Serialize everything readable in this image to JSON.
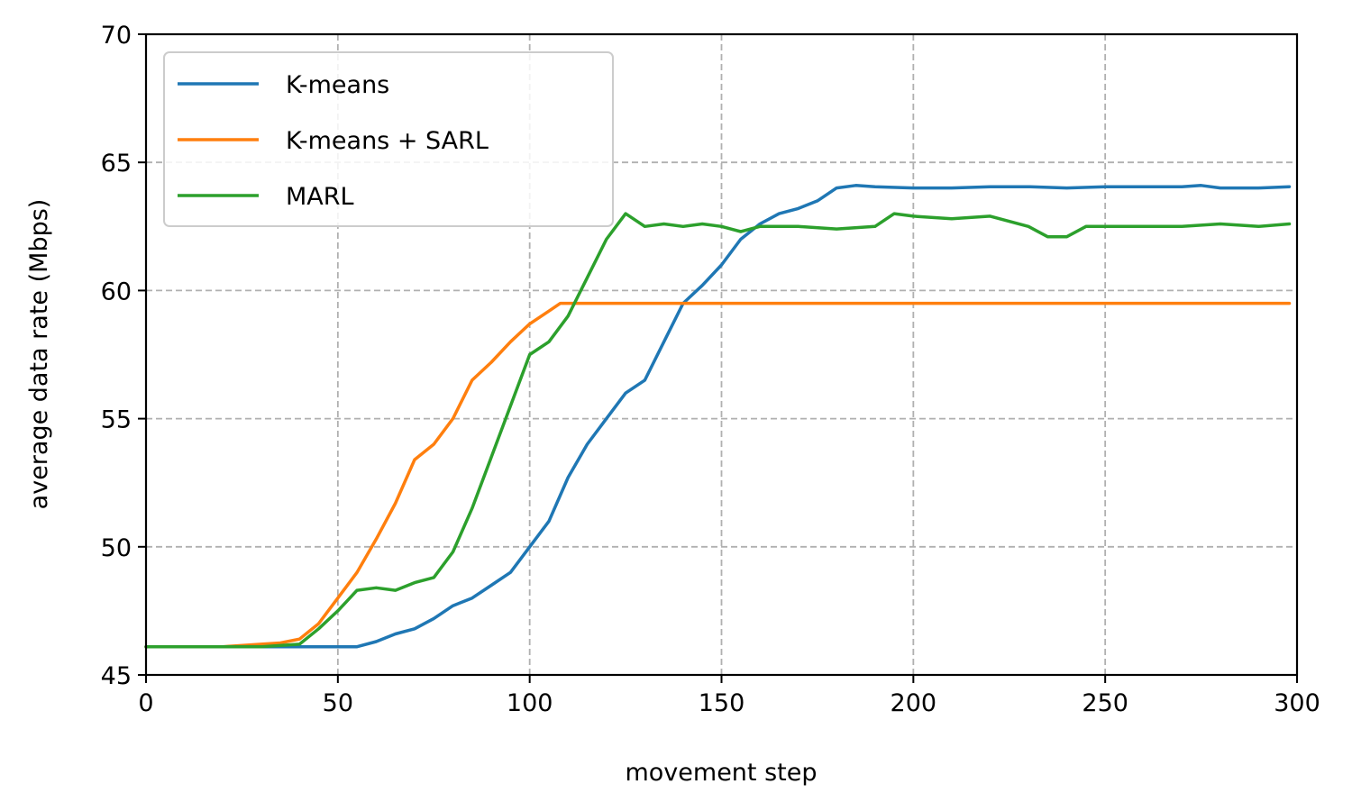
{
  "chart_data": {
    "type": "line",
    "title": "",
    "xlabel": "movement step",
    "ylabel": "average data rate (Mbps)",
    "xlim": [
      0,
      300
    ],
    "ylim": [
      45,
      70
    ],
    "xticks": [
      "0",
      "50",
      "100",
      "150",
      "200",
      "250",
      "300"
    ],
    "yticks": [
      "45",
      "50",
      "55",
      "60",
      "65",
      "70"
    ],
    "grid": true,
    "legend_position": "upper-left",
    "series": [
      {
        "name": "K-means",
        "color": "#1f77b4",
        "x": [
          0,
          10,
          20,
          30,
          40,
          50,
          55,
          60,
          65,
          70,
          75,
          80,
          85,
          90,
          95,
          100,
          105,
          110,
          115,
          120,
          125,
          130,
          135,
          140,
          145,
          150,
          155,
          160,
          165,
          170,
          175,
          180,
          185,
          190,
          200,
          210,
          220,
          230,
          240,
          250,
          260,
          270,
          275,
          280,
          290,
          298
        ],
        "y": [
          46.1,
          46.1,
          46.1,
          46.1,
          46.1,
          46.1,
          46.1,
          46.3,
          46.6,
          46.8,
          47.2,
          47.7,
          48.0,
          48.5,
          49.0,
          50.0,
          51.0,
          52.7,
          54.0,
          55.0,
          56.0,
          56.5,
          58.0,
          59.5,
          60.2,
          61.0,
          62.0,
          62.6,
          63.0,
          63.2,
          63.5,
          64.0,
          64.1,
          64.05,
          64.0,
          64.0,
          64.05,
          64.05,
          64.0,
          64.05,
          64.05,
          64.05,
          64.1,
          64.0,
          64.0,
          64.05
        ]
      },
      {
        "name": "K-means + SARL",
        "color": "#ff7f0e",
        "x": [
          0,
          10,
          20,
          30,
          35,
          40,
          45,
          50,
          55,
          60,
          65,
          70,
          75,
          80,
          85,
          90,
          95,
          100,
          105,
          108,
          110,
          120,
          130,
          140,
          150,
          160,
          170,
          180,
          190,
          200,
          210,
          220,
          230,
          240,
          250,
          260,
          270,
          280,
          290,
          298
        ],
        "y": [
          46.1,
          46.1,
          46.1,
          46.2,
          46.25,
          46.4,
          47.0,
          48.0,
          49.0,
          50.3,
          51.7,
          53.4,
          54.0,
          55.0,
          56.5,
          57.2,
          58.0,
          58.7,
          59.2,
          59.5,
          59.5,
          59.5,
          59.5,
          59.5,
          59.5,
          59.5,
          59.5,
          59.5,
          59.5,
          59.5,
          59.5,
          59.5,
          59.5,
          59.5,
          59.5,
          59.5,
          59.5,
          59.5,
          59.5,
          59.5
        ]
      },
      {
        "name": "MARL",
        "color": "#2ca02c",
        "x": [
          0,
          10,
          20,
          30,
          40,
          45,
          50,
          55,
          60,
          65,
          70,
          75,
          80,
          85,
          90,
          95,
          100,
          105,
          110,
          115,
          120,
          125,
          130,
          135,
          140,
          145,
          150,
          155,
          160,
          170,
          180,
          190,
          195,
          200,
          210,
          220,
          230,
          235,
          240,
          245,
          250,
          260,
          270,
          280,
          290,
          298
        ],
        "y": [
          46.1,
          46.1,
          46.1,
          46.1,
          46.2,
          46.8,
          47.5,
          48.3,
          48.4,
          48.3,
          48.6,
          48.8,
          49.8,
          51.5,
          53.5,
          55.5,
          57.5,
          58.0,
          59.0,
          60.5,
          62.0,
          63.0,
          62.5,
          62.6,
          62.5,
          62.6,
          62.5,
          62.3,
          62.5,
          62.5,
          62.4,
          62.5,
          63.0,
          62.9,
          62.8,
          62.9,
          62.5,
          62.1,
          62.1,
          62.5,
          62.5,
          62.5,
          62.5,
          62.6,
          62.5,
          62.6
        ]
      }
    ]
  }
}
